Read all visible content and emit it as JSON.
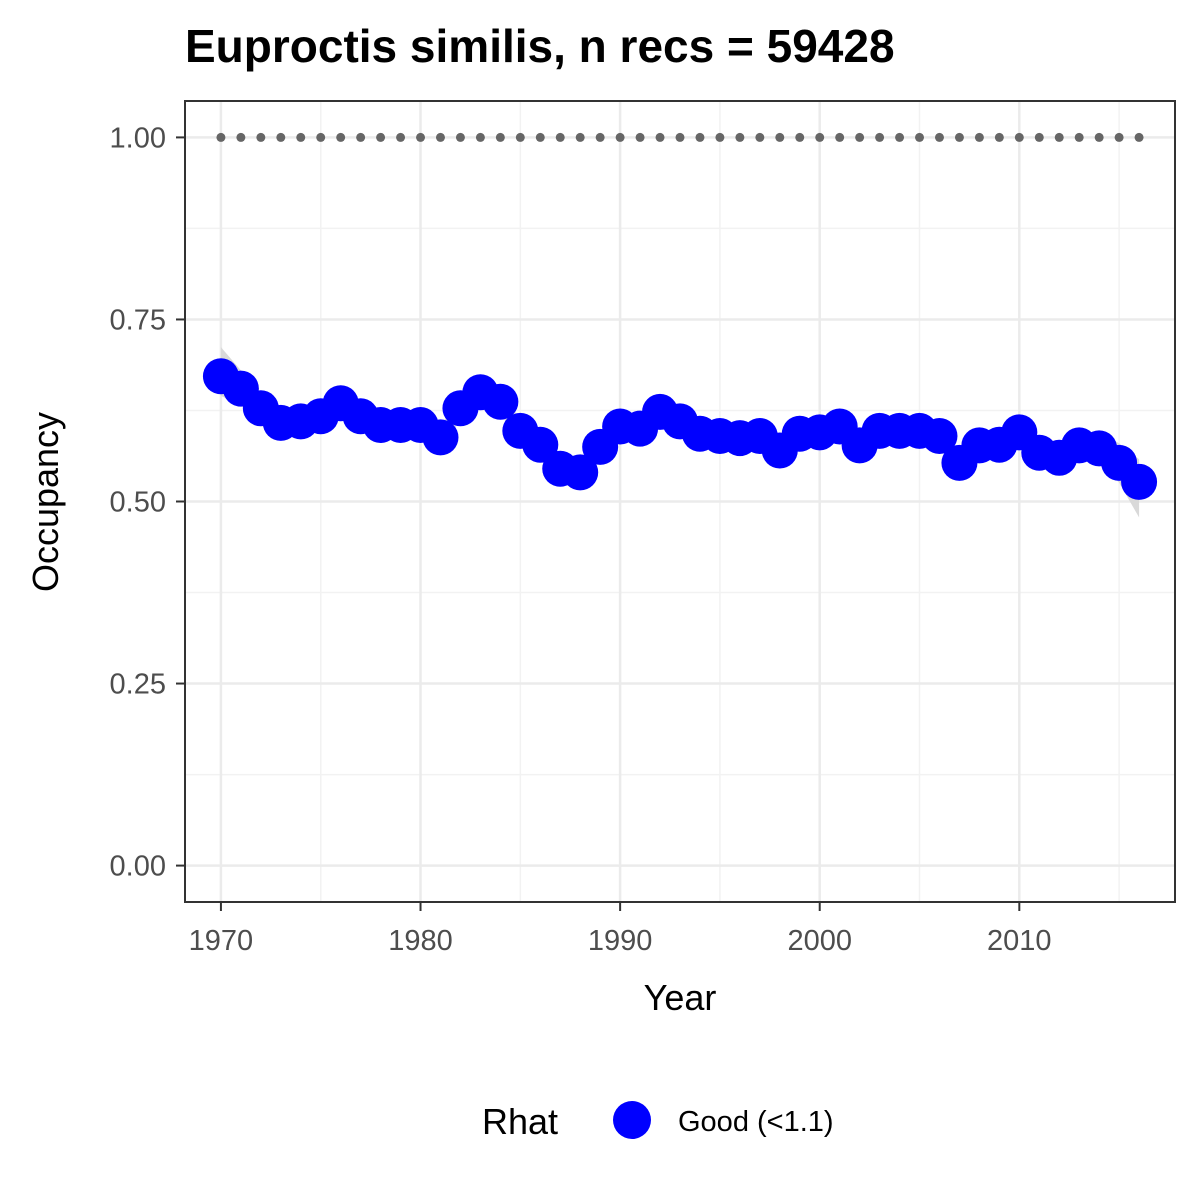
{
  "chart_data": {
    "type": "line",
    "title": "Euproctis similis, n recs = 59428",
    "xlabel": "Year",
    "ylabel": "Occupancy",
    "xlim": [
      1968.2,
      2017.8
    ],
    "ylim": [
      -0.05,
      1.05
    ],
    "x_ticks": [
      1970,
      1980,
      1990,
      2000,
      2010
    ],
    "x_tick_labels": [
      "1970",
      "1980",
      "1990",
      "2000",
      "2010"
    ],
    "y_ticks": [
      0,
      0.25,
      0.5,
      0.75,
      1
    ],
    "y_tick_labels": [
      "0.00",
      "0.25",
      "0.50",
      "0.75",
      "1.00"
    ],
    "grid": true,
    "legend": {
      "position": "bottom",
      "title": "Rhat",
      "entries": [
        {
          "label": "Good (<1.1)",
          "color": "#0000ff"
        }
      ]
    },
    "colors": {
      "points": "#0000ff",
      "ribbon": "#d9d9d9",
      "reference": "#666666"
    },
    "x": [
      1970,
      1971,
      1972,
      1973,
      1974,
      1975,
      1976,
      1977,
      1978,
      1979,
      1980,
      1981,
      1982,
      1983,
      1984,
      1985,
      1986,
      1987,
      1988,
      1989,
      1990,
      1991,
      1992,
      1993,
      1994,
      1995,
      1996,
      1997,
      1998,
      1999,
      2000,
      2001,
      2002,
      2003,
      2004,
      2005,
      2006,
      2007,
      2008,
      2009,
      2010,
      2011,
      2012,
      2013,
      2014,
      2015,
      2016
    ],
    "series": [
      {
        "values": [
          0.672,
          0.655,
          0.628,
          0.608,
          0.61,
          0.617,
          0.635,
          0.617,
          0.605,
          0.605,
          0.605,
          0.588,
          0.628,
          0.65,
          0.637,
          0.597,
          0.578,
          0.545,
          0.54,
          0.575,
          0.603,
          0.6,
          0.623,
          0.61,
          0.593,
          0.59,
          0.587,
          0.59,
          0.57,
          0.593,
          0.595,
          0.603,
          0.577,
          0.597,
          0.597,
          0.597,
          0.59,
          0.553,
          0.577,
          0.578,
          0.595,
          0.567,
          0.56,
          0.577,
          0.573,
          0.553,
          0.527
        ],
        "lower": [
          0.645,
          0.632,
          0.612,
          0.596,
          0.597,
          0.602,
          0.618,
          0.602,
          0.592,
          0.592,
          0.591,
          0.575,
          0.611,
          0.632,
          0.62,
          0.582,
          0.563,
          0.53,
          0.527,
          0.561,
          0.589,
          0.586,
          0.607,
          0.595,
          0.579,
          0.577,
          0.573,
          0.576,
          0.556,
          0.579,
          0.581,
          0.588,
          0.563,
          0.583,
          0.583,
          0.583,
          0.576,
          0.539,
          0.562,
          0.563,
          0.58,
          0.552,
          0.543,
          0.559,
          0.553,
          0.526,
          0.478
        ],
        "upper": [
          0.712,
          0.68,
          0.648,
          0.624,
          0.626,
          0.634,
          0.652,
          0.634,
          0.62,
          0.62,
          0.62,
          0.603,
          0.645,
          0.668,
          0.654,
          0.612,
          0.594,
          0.561,
          0.555,
          0.59,
          0.618,
          0.615,
          0.639,
          0.626,
          0.608,
          0.604,
          0.601,
          0.604,
          0.585,
          0.607,
          0.61,
          0.618,
          0.592,
          0.612,
          0.612,
          0.612,
          0.605,
          0.568,
          0.592,
          0.594,
          0.611,
          0.583,
          0.578,
          0.596,
          0.595,
          0.58,
          0.558
        ]
      }
    ],
    "reference_line": {
      "y": 1.0,
      "style": "dotted"
    }
  }
}
